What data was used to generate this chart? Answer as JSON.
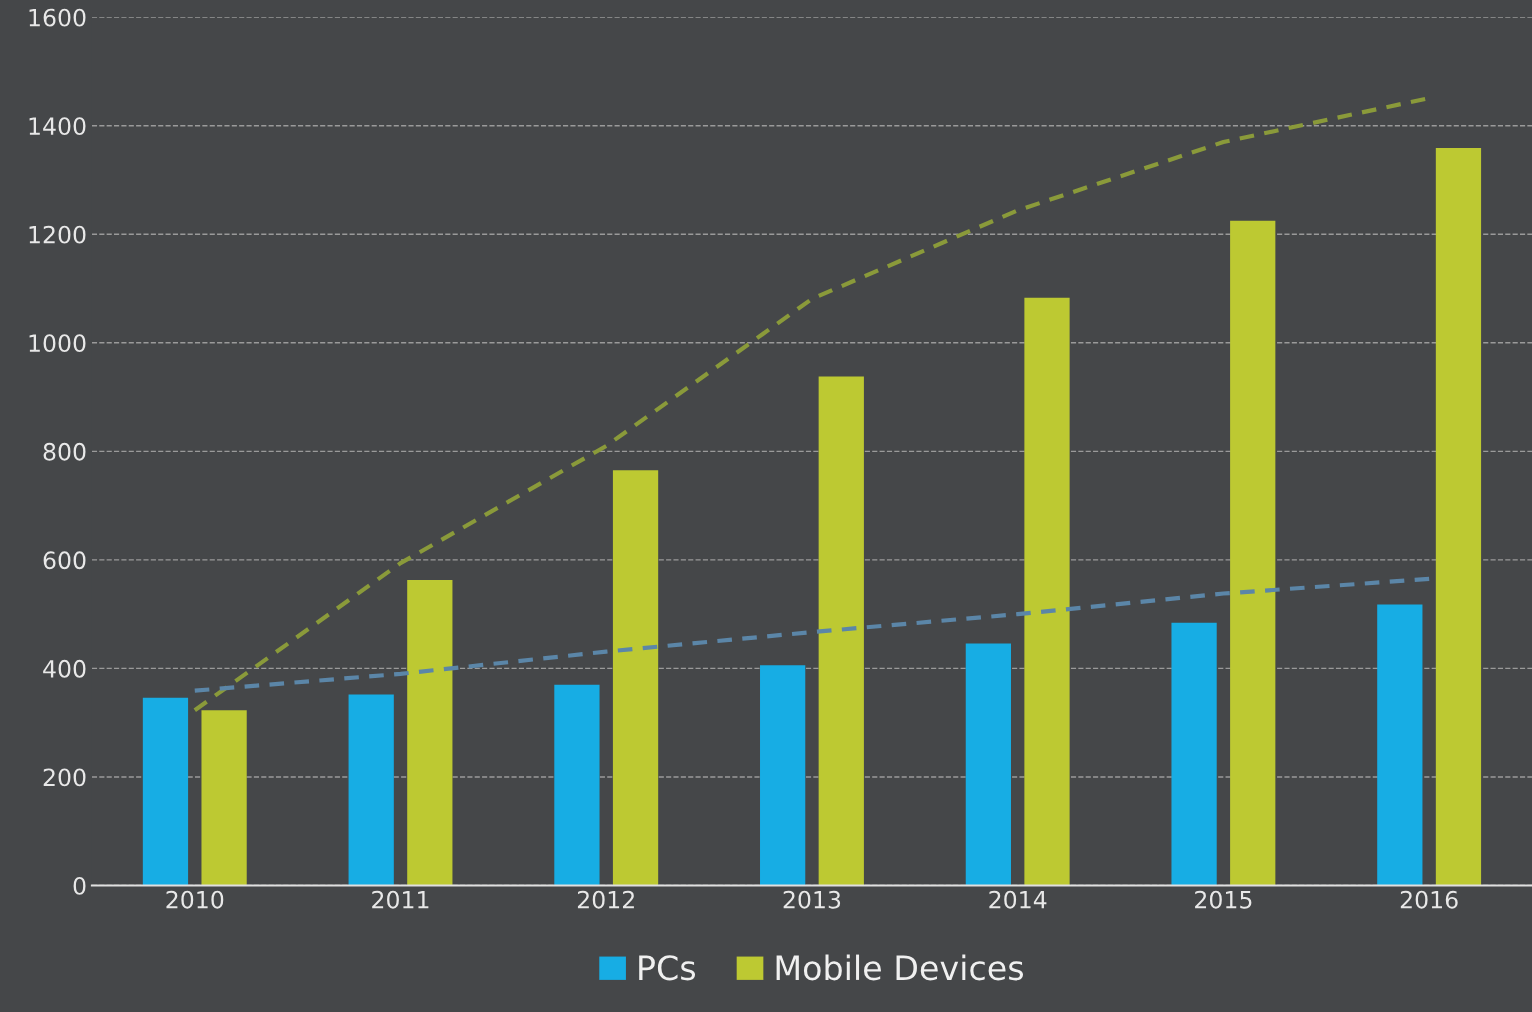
{
  "chart_data": {
    "type": "bar",
    "categories": [
      "2010",
      "2011",
      "2012",
      "2013",
      "2014",
      "2015",
      "2016"
    ],
    "series": [
      {
        "name": "PCs",
        "color": "#17ade4",
        "values": [
          346,
          352,
          370,
          406,
          446,
          484,
          518
        ]
      },
      {
        "name": "Mobile Devices",
        "color": "#bdc932",
        "values": [
          323,
          563,
          765,
          938,
          1083,
          1225,
          1359
        ]
      },
      {
        "type": "line",
        "color": "#8a9a3a",
        "line_style": "dashed",
        "values": [
          323,
          594,
          810,
          1081,
          1244,
          1370,
          1451
        ]
      },
      {
        "type": "line",
        "color": "#5b86a8",
        "line_style": "dashed",
        "values": [
          359,
          390,
          431,
          467,
          500,
          538,
          565
        ]
      }
    ],
    "ylim": [
      0,
      1600
    ],
    "yticks": [
      0,
      200,
      400,
      600,
      800,
      1000,
      1200,
      1400,
      1600
    ],
    "grid": "y",
    "legend": "bottom"
  }
}
